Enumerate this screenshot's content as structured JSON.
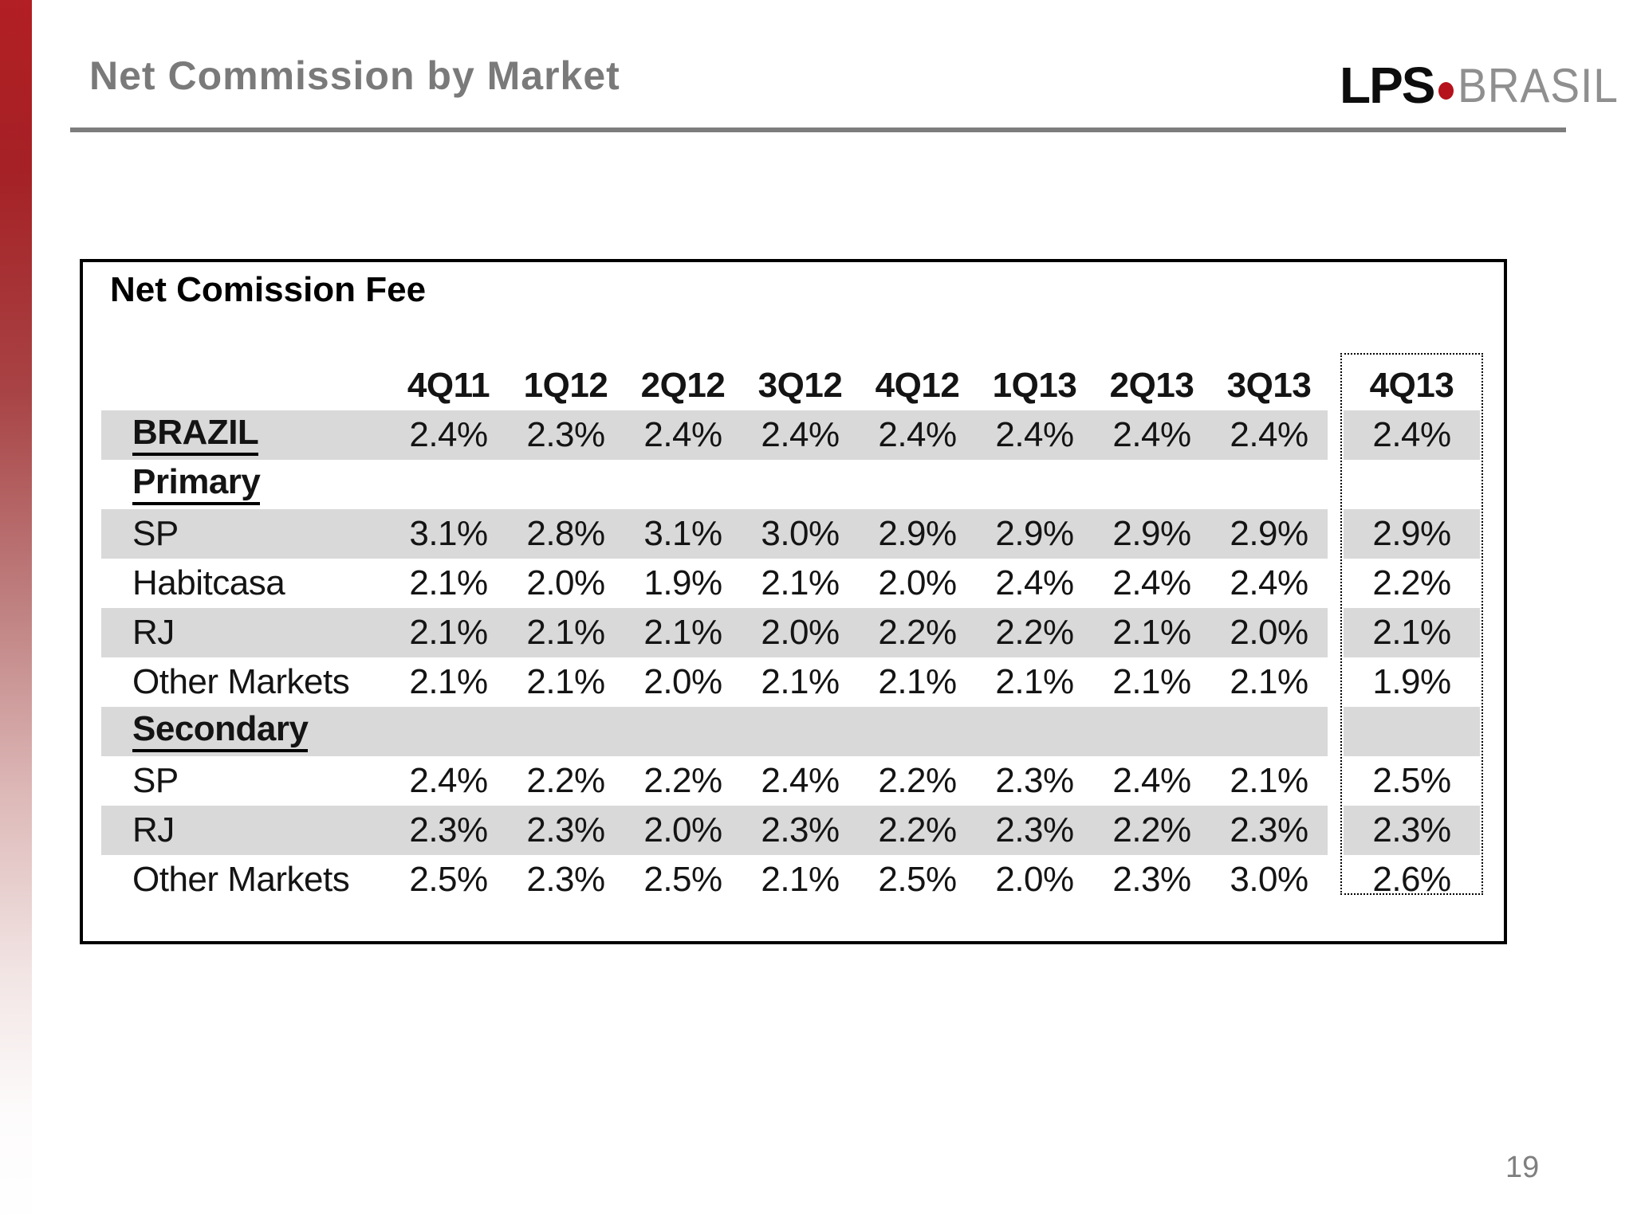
{
  "slide": {
    "title": "Net Commission by Market",
    "page_number": "19",
    "logo": {
      "lps": "LPS",
      "brasil": "BRASIL"
    }
  },
  "colors": {
    "accent_red": "#b21f24",
    "logo_dot_red": "#b5121b",
    "stripe_gray": "#d9d9d9",
    "title_gray": "#7a7a7a"
  },
  "table": {
    "title": "Net Comission Fee",
    "headers": [
      "4Q11",
      "1Q12",
      "2Q12",
      "3Q12",
      "4Q12",
      "1Q13",
      "2Q13",
      "3Q13"
    ],
    "last_header": "4Q13",
    "rows": [
      {
        "label": "BRAZIL",
        "values": [
          "2.4%",
          "2.3%",
          "2.4%",
          "2.4%",
          "2.4%",
          "2.4%",
          "2.4%",
          "2.4%"
        ],
        "last": "2.4%"
      },
      {
        "label": "Primary",
        "values": [
          "",
          "",
          "",
          "",
          "",
          "",
          "",
          ""
        ],
        "last": ""
      },
      {
        "label": "SP",
        "values": [
          "3.1%",
          "2.8%",
          "3.1%",
          "3.0%",
          "2.9%",
          "2.9%",
          "2.9%",
          "2.9%"
        ],
        "last": "2.9%"
      },
      {
        "label": "Habitcasa",
        "values": [
          "2.1%",
          "2.0%",
          "1.9%",
          "2.1%",
          "2.0%",
          "2.4%",
          "2.4%",
          "2.4%"
        ],
        "last": "2.2%"
      },
      {
        "label": "RJ",
        "values": [
          "2.1%",
          "2.1%",
          "2.1%",
          "2.0%",
          "2.2%",
          "2.2%",
          "2.1%",
          "2.0%"
        ],
        "last": "2.1%"
      },
      {
        "label": "Other Markets",
        "values": [
          "2.1%",
          "2.1%",
          "2.0%",
          "2.1%",
          "2.1%",
          "2.1%",
          "2.1%",
          "2.1%"
        ],
        "last": "1.9%"
      },
      {
        "label": "Secondary",
        "values": [
          "",
          "",
          "",
          "",
          "",
          "",
          "",
          ""
        ],
        "last": ""
      },
      {
        "label": "SP",
        "values": [
          "2.4%",
          "2.2%",
          "2.2%",
          "2.4%",
          "2.2%",
          "2.3%",
          "2.4%",
          "2.1%"
        ],
        "last": "2.5%"
      },
      {
        "label": "RJ",
        "values": [
          "2.3%",
          "2.3%",
          "2.0%",
          "2.3%",
          "2.2%",
          "2.3%",
          "2.2%",
          "2.3%"
        ],
        "last": "2.3%"
      },
      {
        "label": "Other Markets",
        "values": [
          "2.5%",
          "2.3%",
          "2.5%",
          "2.1%",
          "2.5%",
          "2.0%",
          "2.3%",
          "3.0%"
        ],
        "last": "2.6%"
      }
    ]
  }
}
